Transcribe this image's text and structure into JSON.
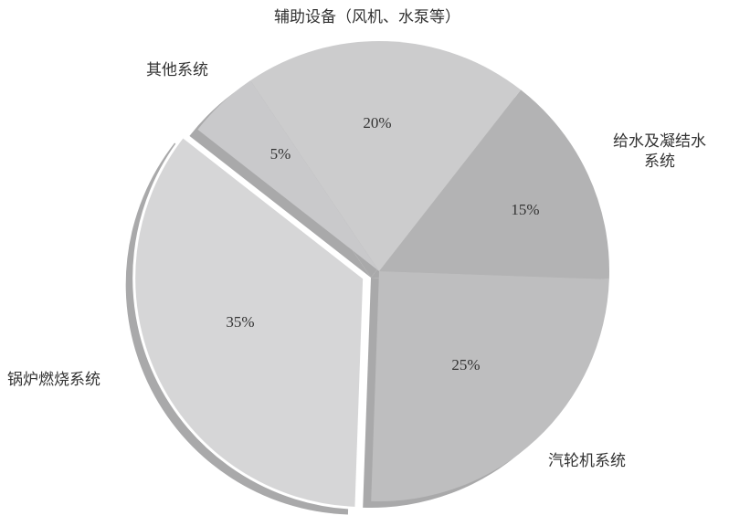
{
  "chart_data": {
    "type": "pie",
    "title": "",
    "slices": [
      {
        "label": "给水及凝结水系统",
        "label_lines": [
          "给水及凝结水",
          "系统"
        ],
        "value": 15,
        "value_label": "15%",
        "color": "#b3b3b4",
        "exploded": false
      },
      {
        "label": "汽轮机系统",
        "label_lines": [
          "汽轮机系统"
        ],
        "value": 25,
        "value_label": "25%",
        "color": "#bebebf",
        "exploded": false
      },
      {
        "label": "锅炉燃烧系统",
        "label_lines": [
          "锅炉燃烧系统"
        ],
        "value": 35,
        "value_label": "35%",
        "color": "#d6d6d7",
        "exploded": true
      },
      {
        "label": "其他系统",
        "label_lines": [
          "其他系统"
        ],
        "value": 5,
        "value_label": "5%",
        "color": "#c9c9cb",
        "exploded": false
      },
      {
        "label": "辅助设备（风机、水泵等）",
        "label_lines": [
          "辅助设备（风机、水泵等）"
        ],
        "value": 20,
        "value_label": "20%",
        "color": "#cccccd",
        "exploded": false
      }
    ],
    "side_color": "#a9a9aa",
    "style": "3d-offset"
  }
}
